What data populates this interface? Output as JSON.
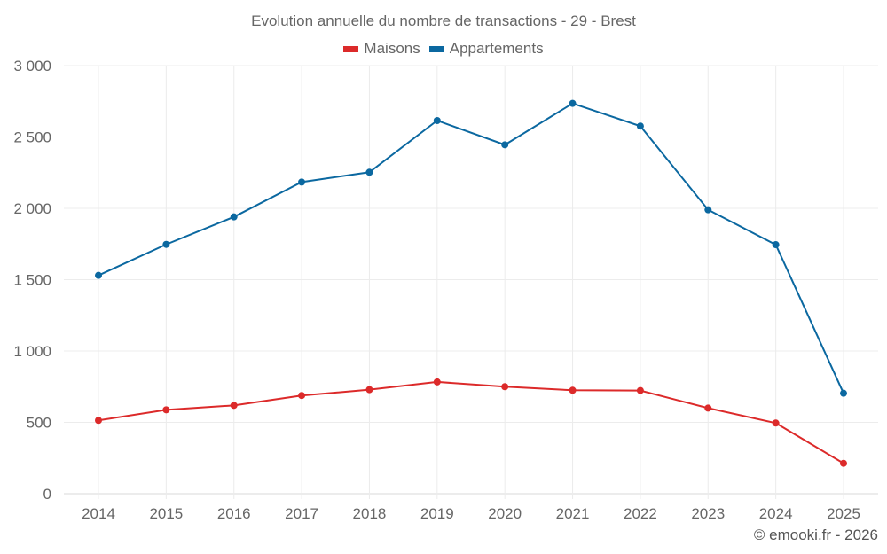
{
  "chart_data": {
    "type": "line",
    "title": "Evolution annuelle du nombre de transactions - 29 - Brest",
    "xlabel": "",
    "ylabel": "",
    "categories": [
      "2014",
      "2015",
      "2016",
      "2017",
      "2018",
      "2019",
      "2020",
      "2021",
      "2022",
      "2023",
      "2024",
      "2025"
    ],
    "series": [
      {
        "name": "Maisons",
        "color": "#dc2a2a",
        "values": [
          514,
          588,
          619,
          688,
          729,
          783,
          750,
          725,
          723,
          600,
          495,
          213
        ]
      },
      {
        "name": "Appartements",
        "color": "#0b68a0",
        "values": [
          1530,
          1747,
          1940,
          2184,
          2253,
          2615,
          2445,
          2735,
          2576,
          1990,
          1745,
          704
        ]
      }
    ],
    "ylim": [
      0,
      3000
    ],
    "yticks": [
      0,
      500,
      1000,
      1500,
      2000,
      2500,
      3000
    ],
    "ytick_labels": [
      "0",
      "500",
      "1 000",
      "1 500",
      "2 000",
      "2 500",
      "3 000"
    ],
    "grid": true,
    "legend_position": "top-center"
  },
  "credit": "© emooki.fr - 2026"
}
